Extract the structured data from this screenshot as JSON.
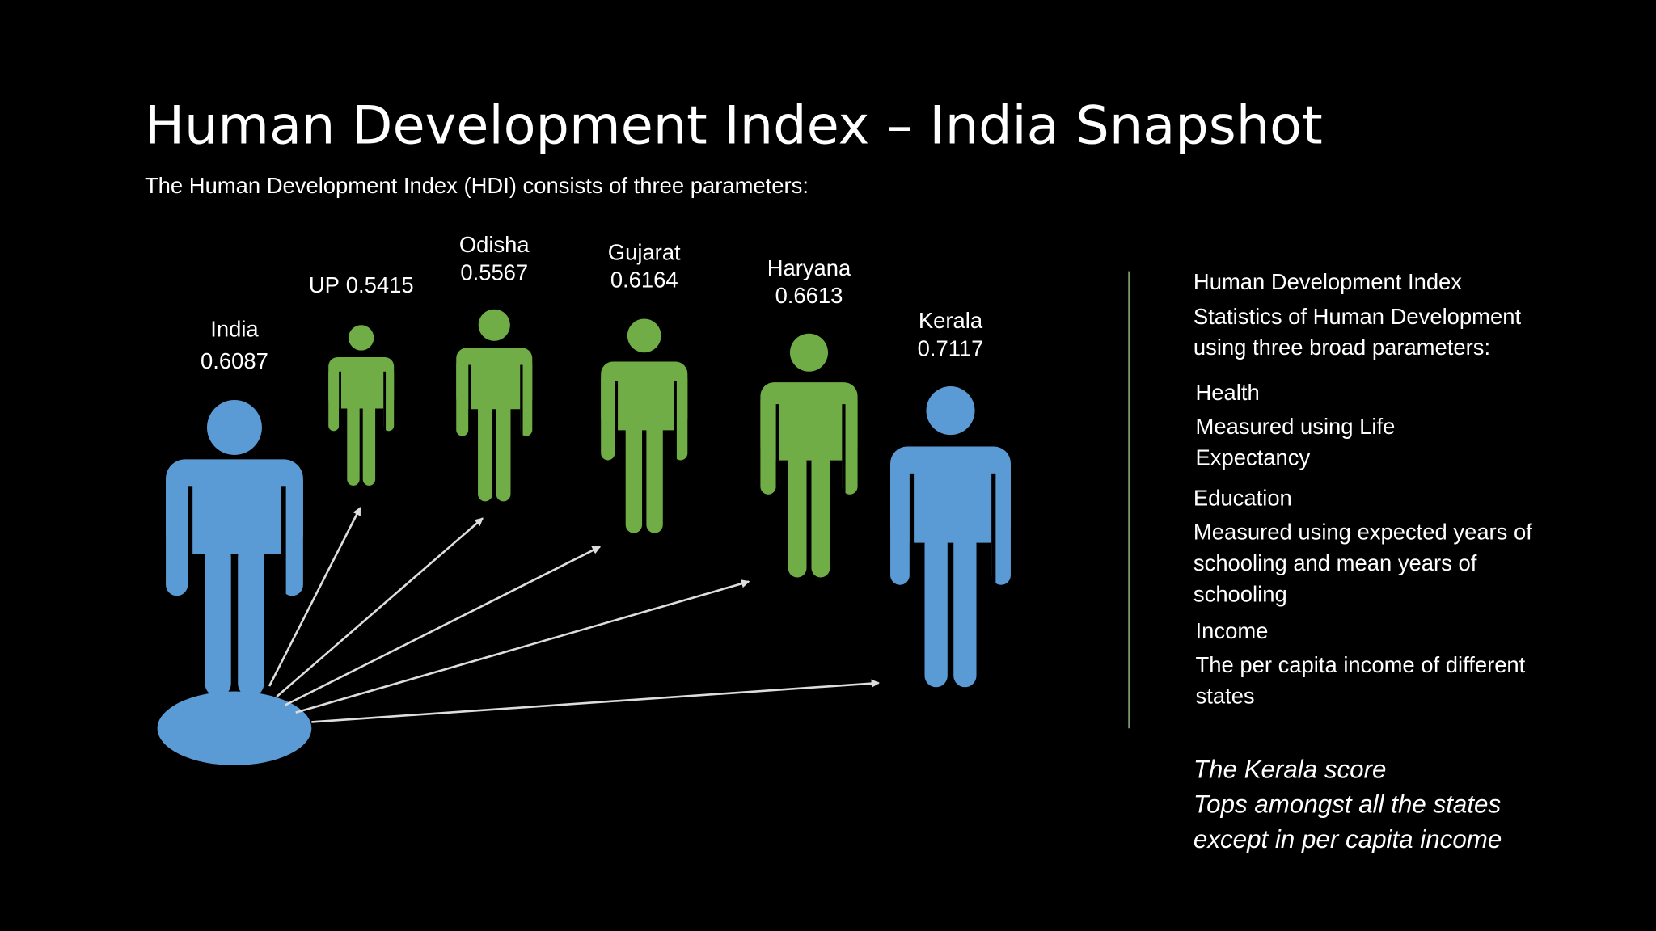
{
  "title": "Human Development Index – India Snapshot",
  "subtitle": "The Human Development Index (HDI) consists of three parameters:",
  "figures": [
    {
      "name": "India",
      "value": 0.6087
    },
    {
      "name": "UP",
      "value": 0.5415
    },
    {
      "name": "Odisha",
      "value": 0.5567
    },
    {
      "name": "Gujarat",
      "value": 0.6164
    },
    {
      "name": "Haryana",
      "value": 0.6613
    },
    {
      "name": "Kerala",
      "value": 0.7117
    }
  ],
  "panel": {
    "heading": "Human Development Index",
    "intro": [
      "Statistics of Human Development",
      "using three broad parameters:"
    ],
    "parameters": [
      {
        "name": "Health",
        "lines": [
          "Measured using Life",
          "Expectancy"
        ]
      },
      {
        "name": "Education",
        "lines": [
          "Measured using expected years of",
          "schooling and mean years of",
          "schooling"
        ]
      },
      {
        "name": "Income",
        "lines": [
          "The per capita income of different",
          "states"
        ]
      }
    ],
    "note": {
      "heading": "The Kerala score",
      "lines": [
        "Tops amongst all the states",
        "except in per capita income"
      ]
    }
  }
}
